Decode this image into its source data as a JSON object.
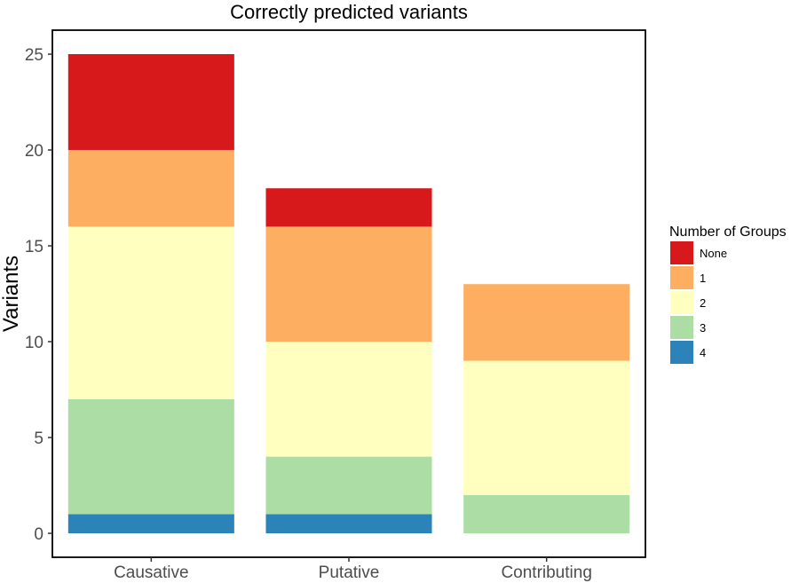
{
  "chart_data": {
    "type": "bar",
    "stacked": true,
    "title": "Correctly predicted variants",
    "xlabel": "",
    "ylabel": "Variants",
    "ylim": [
      0,
      26.5
    ],
    "yticks": [
      0,
      5,
      10,
      15,
      20,
      25
    ],
    "grid": false,
    "legend_position": "right",
    "legend_title": "Number of Groups",
    "categories": [
      "Causative",
      "Putative",
      "Contributing"
    ],
    "series": [
      {
        "name": "4",
        "color": "#2b83ba",
        "values": [
          1,
          1,
          0
        ]
      },
      {
        "name": "3",
        "color": "#abdda4",
        "values": [
          6,
          3,
          2
        ]
      },
      {
        "name": "2",
        "color": "#ffffbf",
        "values": [
          9,
          6,
          7
        ]
      },
      {
        "name": "1",
        "color": "#fdae61",
        "values": [
          4,
          6,
          4
        ]
      },
      {
        "name": "None",
        "color": "#d7191c",
        "values": [
          5,
          2,
          0
        ]
      }
    ],
    "legend_order": [
      "None",
      "1",
      "2",
      "3",
      "4"
    ]
  }
}
